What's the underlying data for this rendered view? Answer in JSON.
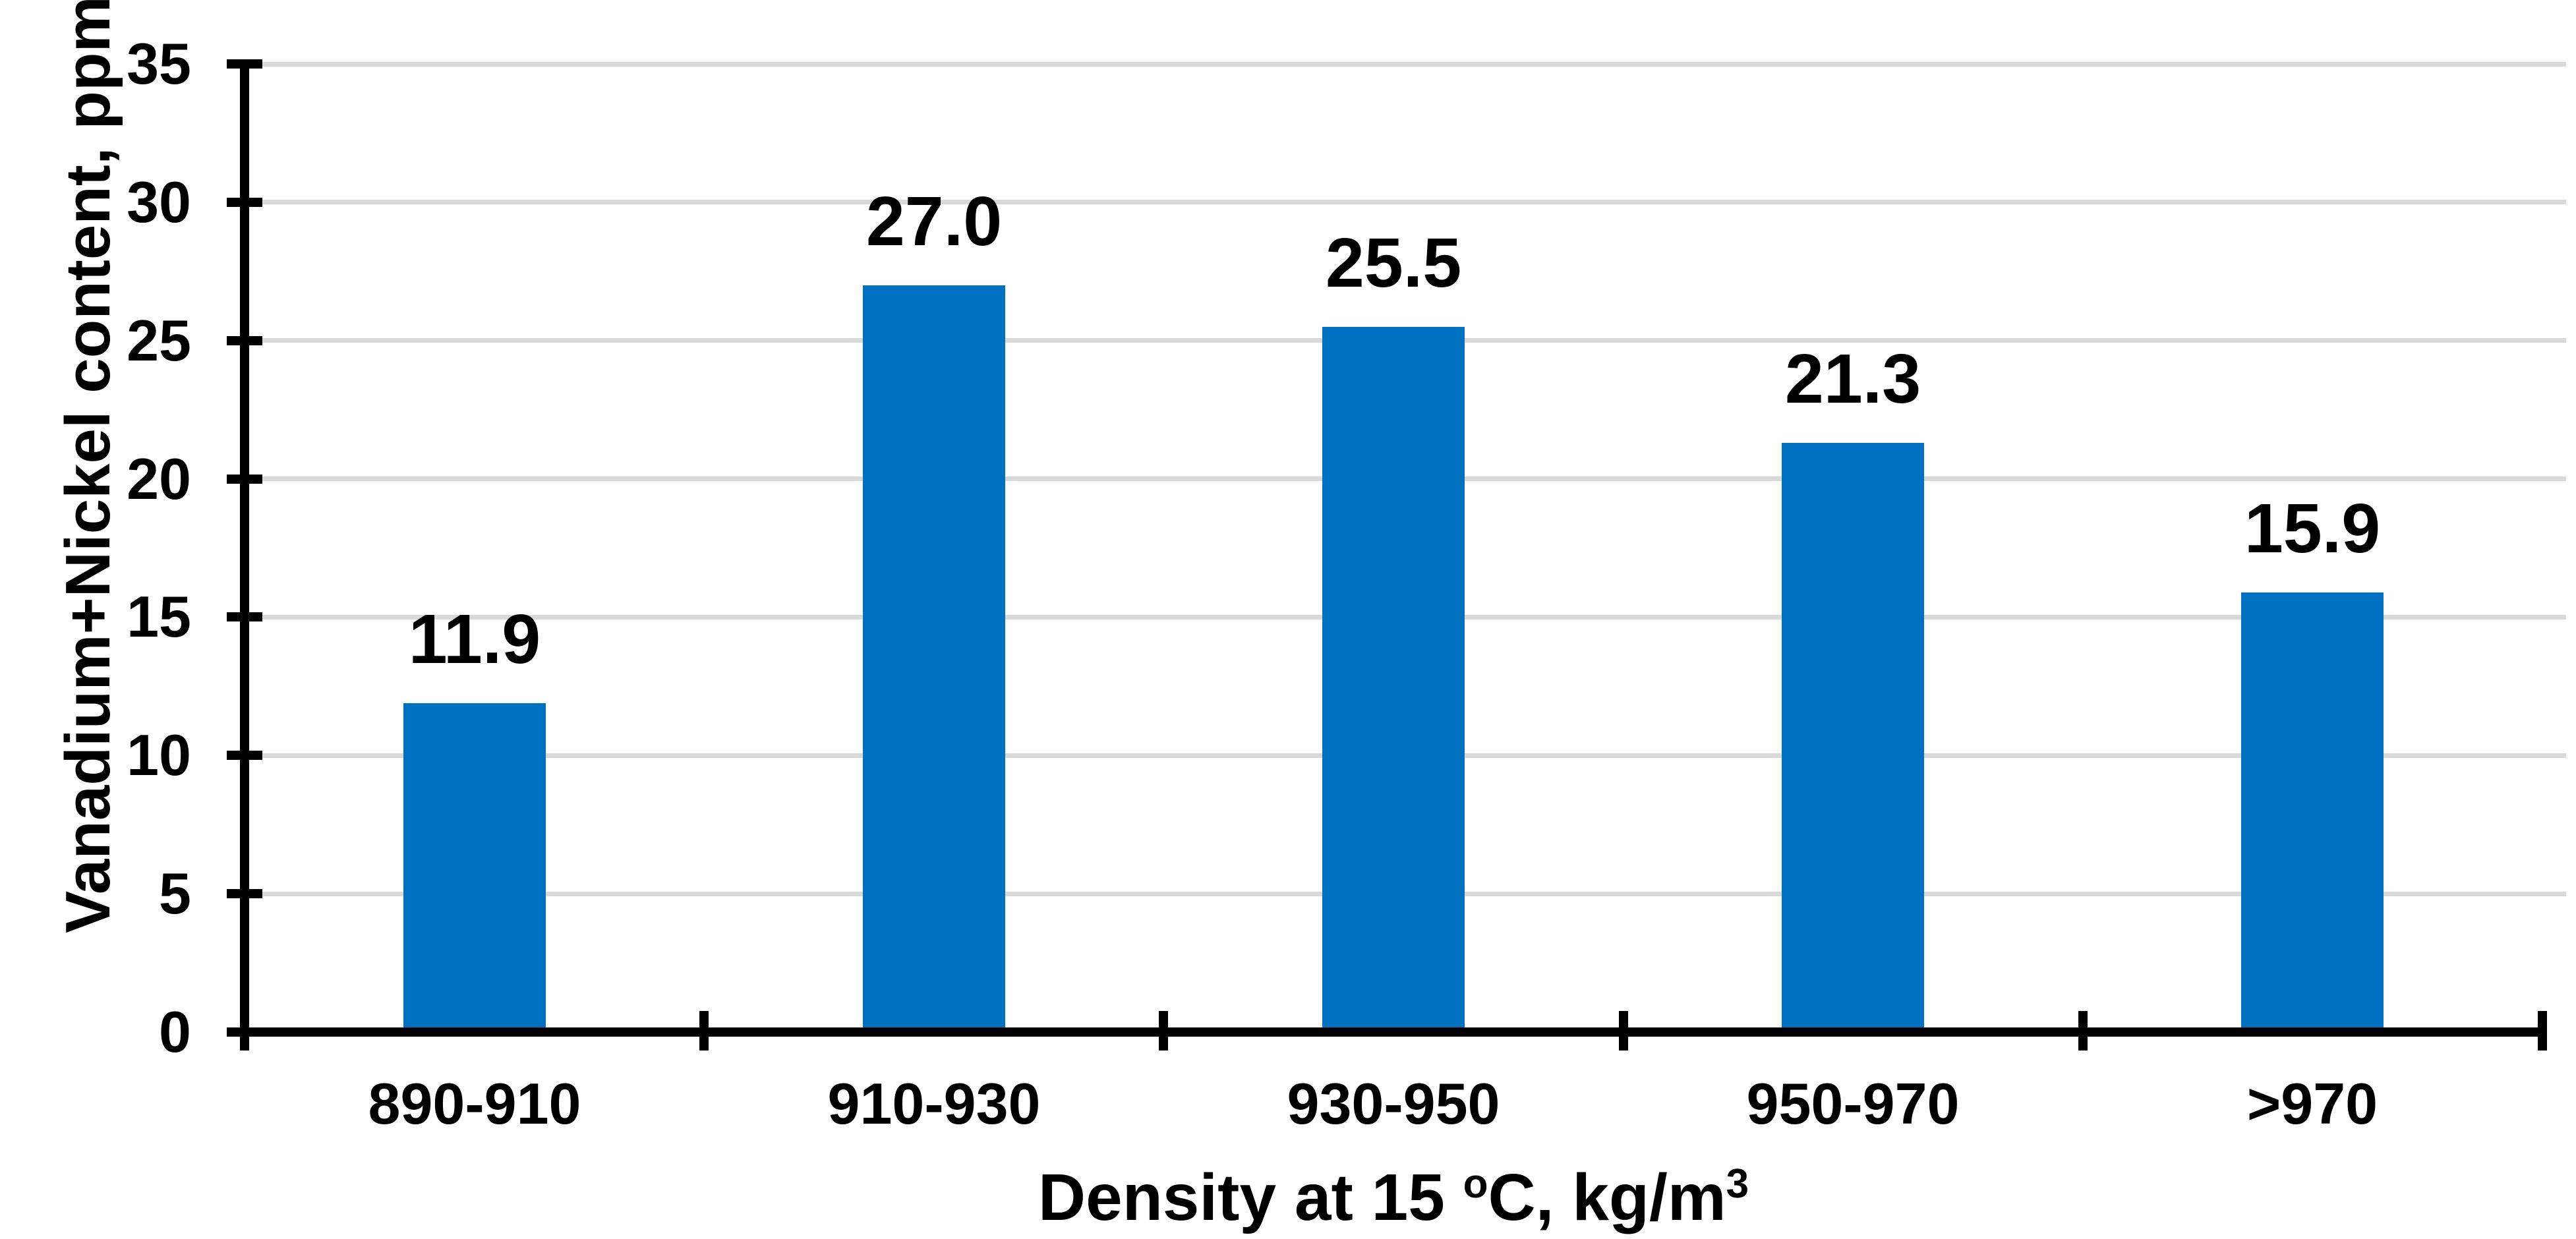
{
  "chart_data": {
    "type": "bar",
    "title": "",
    "categories": [
      "890-910",
      "910-930",
      "930-950",
      "950-970",
      ">970"
    ],
    "values": [
      11.9,
      27.0,
      25.5,
      21.3,
      15.9
    ],
    "data_labels": [
      "11.9",
      "27.0",
      "25.5",
      "21.3",
      "15.9"
    ],
    "series": [
      {
        "name": "Vanadium+Nickel content",
        "values": [
          11.9,
          27.0,
          25.5,
          21.3,
          15.9
        ]
      }
    ],
    "xlabel": "Density at 15 °C, kg/m³",
    "xlabel_parts": {
      "text1": "Density at 15 ",
      "degree": "o",
      "text2": "C, kg/m",
      "exponent": "3"
    },
    "ylabel": "Vanadium+Nickel content, ppm",
    "ylim": [
      0,
      35
    ],
    "ytick_step": 5,
    "ytick_labels": [
      "0",
      "5",
      "10",
      "15",
      "20",
      "25",
      "30",
      "35"
    ],
    "grid": "horizontal-major",
    "legend": "none",
    "colors": {
      "bar": "#0070C0",
      "gridline": "#D9D9D9",
      "axis": "#000000",
      "text": "#000000",
      "background": "#FFFFFF"
    }
  }
}
